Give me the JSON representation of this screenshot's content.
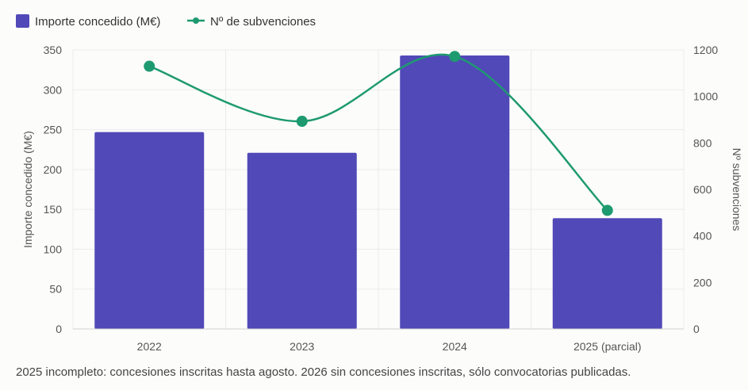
{
  "chart_data": {
    "type": "bar",
    "categories": [
      "2022",
      "2023",
      "2024",
      "2025 (parcial)"
    ],
    "series": [
      {
        "name": "Importe concedido (M€)",
        "kind": "bar",
        "axis": "left",
        "color": "#5149b7",
        "values": [
          247,
          221,
          343,
          139
        ]
      },
      {
        "name": "Nº de subvenciones",
        "kind": "line",
        "axis": "right",
        "color": "#1e9a70",
        "values": [
          1130,
          893,
          1172,
          510
        ]
      }
    ],
    "y_left": {
      "label": "Importe concedido (M€)",
      "ylim": [
        0,
        350
      ],
      "ticks": [
        0,
        50,
        100,
        150,
        200,
        250,
        300,
        350
      ]
    },
    "y_right": {
      "label": "Nº subvenciones",
      "ylim": [
        0,
        1200
      ],
      "ticks": [
        0,
        200,
        400,
        600,
        800,
        1000,
        1200
      ]
    },
    "grid": true,
    "legend_position": "top-left",
    "footnote": "2025 incompleto: concesiones inscritas hasta agosto. 2026 sin concesiones inscritas, sólo convocatorias publicadas."
  }
}
